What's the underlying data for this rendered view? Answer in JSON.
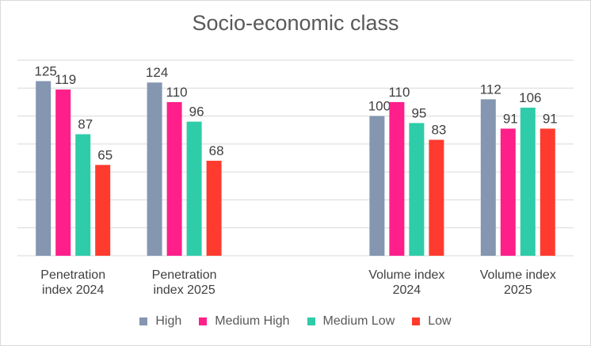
{
  "chart_data": {
    "type": "bar",
    "title": "Socio-economic class",
    "categories": [
      [
        "Penetration",
        "index 2024"
      ],
      [
        "Penetration",
        "index 2025"
      ],
      [
        "",
        ""
      ],
      [
        "Volume index",
        "2024"
      ],
      [
        "Volume index",
        "2025"
      ]
    ],
    "series": [
      {
        "name": "High",
        "color": "#8496B0",
        "values": [
          125,
          124,
          null,
          100,
          112
        ]
      },
      {
        "name": "Medium High",
        "color": "#FF1F8A",
        "values": [
          119,
          110,
          null,
          110,
          91
        ]
      },
      {
        "name": "Medium Low",
        "color": "#2ECCA8",
        "values": [
          87,
          96,
          null,
          95,
          106
        ]
      },
      {
        "name": "Low",
        "color": "#FF3B2F",
        "values": [
          65,
          68,
          null,
          83,
          91
        ]
      }
    ],
    "ylim": [
      0,
      140
    ],
    "grid": true,
    "legend": "bottom",
    "xlabel": "",
    "ylabel": ""
  }
}
